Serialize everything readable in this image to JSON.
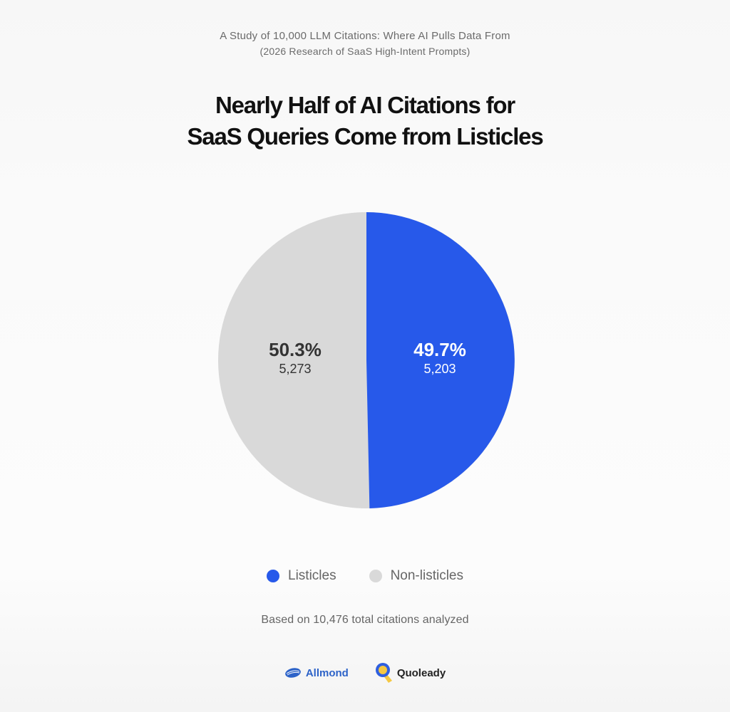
{
  "header": {
    "eyebrow": "A Study of 10,000 LLM Citations: Where AI Pulls Data From",
    "subeyebrow": "(2026 Research of SaaS High-Intent Prompts)",
    "title_line1": "Nearly Half of AI Citations for",
    "title_line2": "SaaS Queries Come from Listicles"
  },
  "slices": {
    "listicles": {
      "name": "Listicles",
      "percent_label": "49.7%",
      "count_label": "5,203",
      "color": "#2759EA"
    },
    "non_listicles": {
      "name": "Non-listicles",
      "percent_label": "50.3%",
      "count_label": "5,273",
      "color": "#D9D9D9"
    }
  },
  "legend": {
    "items": [
      {
        "label": "Listicles",
        "color": "#2759EA"
      },
      {
        "label": "Non-listicles",
        "color": "#D9D9D9"
      }
    ]
  },
  "footnote": "Based on 10,476 total citations analyzed",
  "logos": {
    "left": "Allmond",
    "right": "Quoleady"
  },
  "chart_data": {
    "type": "pie",
    "title": "Nearly Half of AI Citations for SaaS Queries Come from Listicles",
    "subtitle": "A Study of 10,000 LLM Citations: Where AI Pulls Data From (2026 Research of SaaS High-Intent Prompts)",
    "categories": [
      "Listicles",
      "Non-listicles"
    ],
    "values": [
      5203,
      5273
    ],
    "percentages": [
      49.7,
      50.3
    ],
    "colors": [
      "#2759EA",
      "#D9D9D9"
    ],
    "total": 10476,
    "legend_position": "bottom",
    "start_angle": "12 o'clock, clockwise",
    "annotation": "Based on 10,476 total citations analyzed"
  }
}
